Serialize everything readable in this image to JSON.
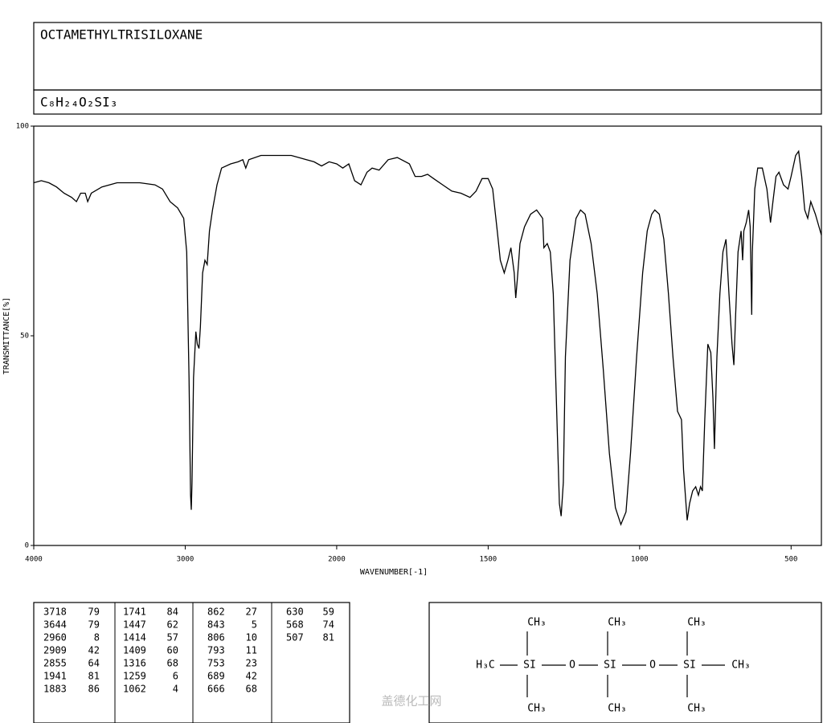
{
  "header": {
    "name": "OCTAMETHYLTRISILOXANE",
    "formula": "C₈H₂₄O₂SI₃"
  },
  "chart_data": {
    "type": "line",
    "x_label": "WAVENUMBER[-1]",
    "y_label": "TRANSMITTANCE[%]",
    "xlim": [
      4000,
      400
    ],
    "x_scale_break": 2000,
    "xticks": [
      4000,
      3000,
      2000,
      1500,
      1000,
      500
    ],
    "ylim": [
      0,
      100
    ],
    "yticks": [
      0,
      50,
      100
    ],
    "color": "#000000",
    "x": [
      4000,
      3950,
      3900,
      3850,
      3800,
      3750,
      3718,
      3690,
      3660,
      3644,
      3620,
      3550,
      3450,
      3300,
      3200,
      3150,
      3100,
      3050,
      3010,
      2990,
      2975,
      2965,
      2960,
      2955,
      2945,
      2930,
      2920,
      2909,
      2900,
      2885,
      2870,
      2855,
      2840,
      2820,
      2790,
      2760,
      2700,
      2650,
      2620,
      2600,
      2580,
      2500,
      2400,
      2300,
      2200,
      2150,
      2100,
      2050,
      2000,
      1980,
      1960,
      1941,
      1920,
      1900,
      1883,
      1860,
      1830,
      1800,
      1760,
      1741,
      1720,
      1700,
      1680,
      1650,
      1620,
      1590,
      1560,
      1540,
      1520,
      1500,
      1485,
      1470,
      1460,
      1447,
      1435,
      1425,
      1414,
      1409,
      1403,
      1395,
      1380,
      1360,
      1340,
      1320,
      1316,
      1305,
      1295,
      1285,
      1275,
      1265,
      1259,
      1252,
      1245,
      1230,
      1210,
      1195,
      1180,
      1160,
      1140,
      1120,
      1100,
      1080,
      1062,
      1045,
      1030,
      1010,
      990,
      975,
      960,
      950,
      935,
      920,
      905,
      890,
      875,
      862,
      855,
      843,
      835,
      825,
      815,
      806,
      799,
      793,
      785,
      775,
      765,
      758,
      753,
      745,
      735,
      725,
      715,
      705,
      695,
      689,
      683,
      675,
      665,
      660,
      656,
      648,
      640,
      635,
      630,
      628,
      620,
      610,
      595,
      580,
      568,
      560,
      550,
      540,
      525,
      510,
      500,
      485,
      475,
      465,
      455,
      445,
      435,
      420,
      400
    ],
    "values": [
      86.5,
      87,
      86.5,
      85.5,
      84,
      83,
      82,
      84,
      84,
      82,
      84,
      85.5,
      86.5,
      86.5,
      86,
      85,
      82,
      80.5,
      78,
      70,
      40,
      12,
      8.5,
      15,
      40,
      51,
      48,
      47,
      52,
      65,
      68,
      67,
      75,
      80,
      86,
      90,
      91,
      91.5,
      92,
      90,
      92,
      93,
      93,
      93,
      92,
      91.5,
      90.5,
      91.5,
      91,
      90,
      91,
      87,
      86,
      89,
      90,
      89.5,
      92,
      92.5,
      91,
      88,
      88,
      88.5,
      87.5,
      86,
      84.5,
      84,
      83,
      84.5,
      87.5,
      87.5,
      85,
      75,
      68,
      65,
      68,
      71,
      65,
      59,
      64,
      72,
      76,
      79,
      80,
      78,
      71,
      72,
      70,
      60,
      35,
      10,
      7,
      15,
      45,
      68,
      78,
      80,
      79,
      72,
      60,
      42,
      22,
      9,
      5,
      8,
      22,
      45,
      65,
      75,
      79,
      80,
      79,
      73,
      60,
      45,
      32,
      30,
      18,
      6,
      10,
      13,
      14,
      12,
      14,
      13,
      30,
      48,
      46,
      35,
      23,
      45,
      60,
      70,
      73,
      60,
      48,
      43,
      55,
      70,
      75,
      68,
      75,
      77,
      80,
      76,
      55,
      70,
      85,
      90,
      90,
      85,
      77,
      82,
      88,
      89,
      86,
      85,
      88,
      93,
      94,
      88,
      80,
      78,
      82,
      79,
      74
    ]
  },
  "peak_table": {
    "columns": [
      [
        [
          3718,
          79
        ],
        [
          3644,
          79
        ],
        [
          2960,
          8
        ],
        [
          2909,
          42
        ],
        [
          2855,
          64
        ],
        [
          1941,
          81
        ],
        [
          1883,
          86
        ]
      ],
      [
        [
          1741,
          84
        ],
        [
          1447,
          62
        ],
        [
          1414,
          57
        ],
        [
          1409,
          60
        ],
        [
          1316,
          68
        ],
        [
          1259,
          6
        ],
        [
          1062,
          4
        ]
      ],
      [
        [
          862,
          27
        ],
        [
          843,
          5
        ],
        [
          806,
          10
        ],
        [
          793,
          11
        ],
        [
          753,
          23
        ],
        [
          689,
          42
        ],
        [
          666,
          68
        ]
      ],
      [
        [
          630,
          59
        ],
        [
          568,
          74
        ],
        [
          507,
          81
        ]
      ]
    ]
  },
  "structure": {
    "nodes": [
      "CH₃",
      "CH₃",
      "CH₃",
      "H₃C",
      "SI",
      "O",
      "SI",
      "O",
      "SI",
      "CH₃",
      "CH₃",
      "CH₃",
      "CH₃"
    ]
  },
  "watermark": "盖德化工网"
}
